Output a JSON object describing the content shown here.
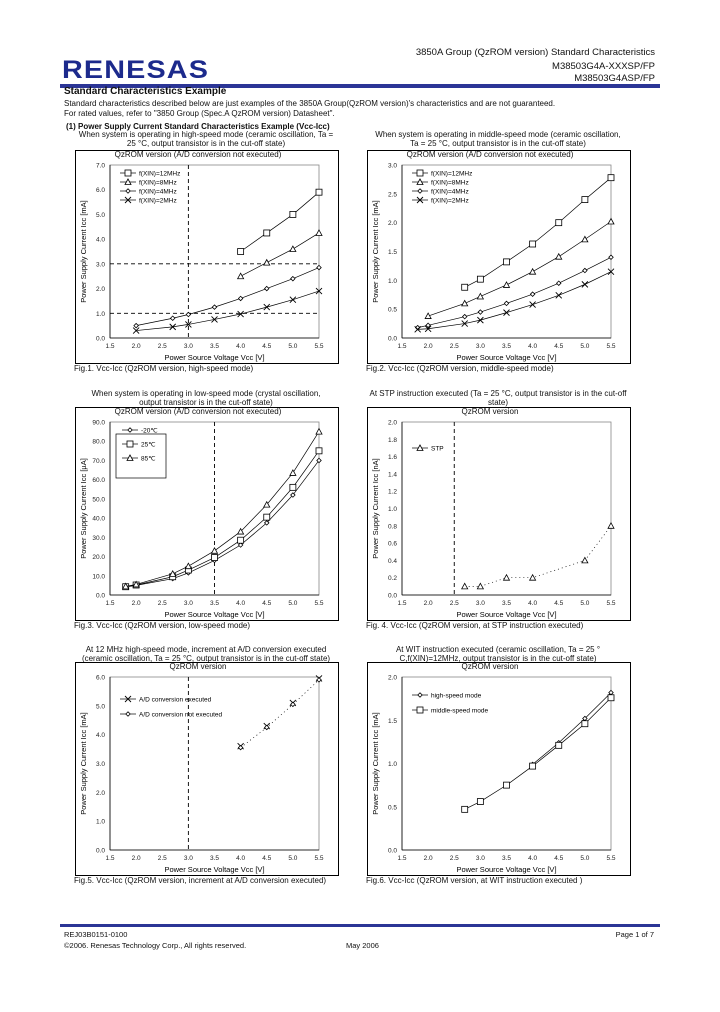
{
  "header": {
    "logo": "RENESAS",
    "title": "3850A Group (QzROM version) Standard Characteristics",
    "part1": "M38503G4A-XXXSP/FP",
    "part2": "M38503G4ASP/FP"
  },
  "section_title": "Standard Characteristics Example",
  "intro1": "Standard characteristics described below are just examples of the 3850A Group(QzROM version)'s characteristics and are not guaranteed.",
  "intro2": "For rated values, refer to \"3850 Group (Spec.A QzROM version) Datasheet\".",
  "subsection": "(1) Power Supply Current Standard Characteristics Example (Vcc-Icc)",
  "footer": {
    "doc": "REJ03B0151-0100",
    "copyright": "©2006. Renesas Technology Corp., All rights reserved.",
    "date": "May 2006",
    "page": "Page 1 of 7"
  },
  "chart_data": [
    {
      "type": "line",
      "title": [
        "When system is operating in high-speed mode (ceramic oscillation, Ta =",
        "25 °C, output transistor is in the cut-off state)"
      ],
      "subtitle": "QzROM version (A/D conversion not executed)",
      "caption": "Fig.1. Vcc-Icc (QzROM version, high-speed mode)",
      "xlabel": "Power Source Voltage Vcc [V]",
      "ylabel": "Power Supply Current Icc [mA]",
      "xlim": [
        1.5,
        5.5
      ],
      "ylim": [
        0,
        7
      ],
      "xstep": 0.5,
      "ystep": 1,
      "grid": false,
      "legend": "top-left",
      "ref_x": [
        3.0
      ],
      "ref_y": [
        1.0,
        3.0
      ],
      "series": [
        {
          "name": "f(XIN)=12MHz",
          "marker": "square",
          "x": [
            4,
            4.5,
            5,
            5.5
          ],
          "y": [
            3.5,
            4.25,
            5.0,
            5.9
          ]
        },
        {
          "name": "f(XIN)=8MHz",
          "marker": "triangle",
          "x": [
            4,
            4.5,
            5,
            5.5
          ],
          "y": [
            2.5,
            3.05,
            3.6,
            4.25
          ]
        },
        {
          "name": "f(XIN)=4MHz",
          "marker": "diamond",
          "x": [
            2,
            2.7,
            3,
            3.5,
            4,
            4.5,
            5,
            5.5
          ],
          "y": [
            0.5,
            0.8,
            0.95,
            1.25,
            1.6,
            2.0,
            2.4,
            2.85
          ]
        },
        {
          "name": "f(XIN)=2MHz",
          "marker": "x",
          "x": [
            2,
            2.7,
            3,
            3.5,
            4,
            4.5,
            5,
            5.5
          ],
          "y": [
            0.3,
            0.45,
            0.55,
            0.75,
            0.97,
            1.25,
            1.55,
            1.9
          ]
        }
      ]
    },
    {
      "type": "line",
      "title": [
        "When system is operating in middle-speed mode (ceramic oscillation,",
        "Ta = 25 °C, output transistor is in the cut-off state)"
      ],
      "subtitle": "QzROM version (A/D conversion not executed)",
      "caption": "Fig.2. Vcc-Icc (QzROM version, middle-speed mode)",
      "xlabel": "Power Source Voltage Vcc [V]",
      "ylabel": "Power Supply Current Icc [mA]",
      "xlim": [
        1.5,
        5.5
      ],
      "ylim": [
        0,
        3
      ],
      "xstep": 0.5,
      "ystep": 0.5,
      "grid": false,
      "legend": "top-left",
      "ref_x": [],
      "ref_y": [],
      "series": [
        {
          "name": "f(XIN)=12MHz",
          "marker": "square",
          "x": [
            2.7,
            3,
            3.5,
            4,
            4.5,
            5,
            5.5
          ],
          "y": [
            0.88,
            1.02,
            1.32,
            1.63,
            2.0,
            2.4,
            2.78
          ]
        },
        {
          "name": "f(XIN)=8MHz",
          "marker": "triangle",
          "x": [
            2,
            2.7,
            3,
            3.5,
            4,
            4.5,
            5,
            5.5
          ],
          "y": [
            0.38,
            0.6,
            0.72,
            0.92,
            1.15,
            1.41,
            1.71,
            2.02
          ]
        },
        {
          "name": "f(XIN)=4MHz",
          "marker": "diamond",
          "x": [
            1.8,
            2,
            2.7,
            3,
            3.5,
            4,
            4.5,
            5,
            5.5
          ],
          "y": [
            0.18,
            0.22,
            0.37,
            0.45,
            0.6,
            0.76,
            0.95,
            1.17,
            1.4
          ]
        },
        {
          "name": "f(XIN)=2MHz",
          "marker": "x",
          "x": [
            1.8,
            2,
            2.7,
            3,
            3.5,
            4,
            4.5,
            5,
            5.5
          ],
          "y": [
            0.15,
            0.16,
            0.25,
            0.31,
            0.44,
            0.58,
            0.74,
            0.93,
            1.15
          ]
        }
      ]
    },
    {
      "type": "line",
      "title": [
        "When system is operating in low-speed mode (crystal oscillation,",
        "output transistor is in the cut-off state)"
      ],
      "subtitle": "QzROM version (A/D conversion not executed)",
      "caption": "Fig.3. Vcc-Icc (QzROM version, low-speed mode)",
      "xlabel": "Power Source Voltage Vcc [V]",
      "ylabel": "Power Supply Current Icc [µA]",
      "xlim": [
        1.5,
        5.5
      ],
      "ylim": [
        0,
        90
      ],
      "xstep": 0.5,
      "ystep": 10,
      "grid": false,
      "legend": "top-left-boxed",
      "ref_x": [
        3.5
      ],
      "ref_y": [],
      "series": [
        {
          "name": "-20℃",
          "marker": "diamond",
          "x": [
            1.8,
            2,
            2.7,
            3,
            3.5,
            4,
            4.5,
            5,
            5.5
          ],
          "y": [
            4.2,
            5,
            8.5,
            11.5,
            18,
            26,
            37.5,
            52,
            70
          ]
        },
        {
          "name": "25℃",
          "marker": "square",
          "x": [
            1.8,
            2,
            2.7,
            3,
            3.5,
            4,
            4.5,
            5,
            5.5
          ],
          "y": [
            4.3,
            5.2,
            9.5,
            13,
            19.5,
            28.5,
            40.5,
            56,
            75
          ]
        },
        {
          "name": "85℃",
          "marker": "triangle",
          "x": [
            1.8,
            2,
            2.7,
            3,
            3.5,
            4,
            4.5,
            5,
            5.5
          ],
          "y": [
            4.5,
            5.5,
            11,
            15,
            23,
            33,
            47,
            63.5,
            85
          ]
        }
      ]
    },
    {
      "type": "line",
      "title": [
        "At STP instruction executed (Ta = 25 °C, output transistor is in the cut-off",
        "state)"
      ],
      "subtitle": "QzROM version",
      "caption": "Fig. 4. Vcc-Icc (QzROM version, at STP instruction executed)",
      "xlabel": "Power Source Voltage Vcc [V]",
      "ylabel": "Power Supply Current Icc [nA]",
      "xlim": [
        1.5,
        5.5
      ],
      "ylim": [
        0,
        2
      ],
      "xstep": 0.5,
      "ystep": 0.2,
      "grid": false,
      "legend": "top-left",
      "ref_x": [
        2.5
      ],
      "ref_y": [],
      "series": [
        {
          "name": "STP",
          "marker": "triangle",
          "line": "dotted",
          "x": [
            2.7,
            3,
            3.5,
            4,
            5,
            5.5
          ],
          "y": [
            0.1,
            0.1,
            0.2,
            0.2,
            0.4,
            0.8
          ]
        }
      ]
    },
    {
      "type": "line",
      "title": [
        "At 12 MHz high-speed mode, increment at A/D conversion executed",
        "(ceramic oscillation, Ta = 25 °C, output transistor is in the cut-off state)"
      ],
      "subtitle": "QzROM version",
      "caption": "Fig.5. Vcc-Icc (QzROM version, increment at A/D conversion executed)",
      "xlabel": "Power Source Voltage Vcc [V]",
      "ylabel": "Power Supply Current Icc [mA]",
      "xlim": [
        1.5,
        5.5
      ],
      "ylim": [
        0,
        6
      ],
      "xstep": 0.5,
      "ystep": 1,
      "grid": false,
      "legend": "top-left",
      "ref_x": [
        3.0
      ],
      "ref_y": [],
      "series": [
        {
          "name": "A/D conversion executed",
          "marker": "x",
          "line": "none",
          "x": [
            4,
            4.5,
            5,
            5.5
          ],
          "y": [
            3.6,
            4.3,
            5.1,
            5.95
          ]
        },
        {
          "name": "A/D conversion not executed",
          "marker": "diamond",
          "line": "dotted",
          "x": [
            4,
            4.5,
            5,
            5.5
          ],
          "y": [
            3.55,
            4.25,
            5.05,
            5.9
          ]
        }
      ]
    },
    {
      "type": "line",
      "title": [
        "At WIT instruction executed (ceramic oscillation, Ta = 25 °",
        "C,f(XIN)=12MHz, output transistor is in the cut-off state)"
      ],
      "subtitle": "QzROM version",
      "caption": "Fig.6. Vcc-Icc (QzROM version, at WIT instruction executed )",
      "xlabel": "Power Source Voltage Vcc [V]",
      "ylabel": "Power Supply Current Icc [mA]",
      "xlim": [
        1.5,
        5.5
      ],
      "ylim": [
        0,
        2
      ],
      "xstep": 0.5,
      "ystep": 0.5,
      "grid": false,
      "legend": "top-left",
      "ref_x": [],
      "ref_y": [],
      "series": [
        {
          "name": "high-speed mode",
          "marker": "diamond",
          "x": [
            4,
            4.5,
            5,
            5.5
          ],
          "y": [
            0.99,
            1.24,
            1.52,
            1.82
          ]
        },
        {
          "name": "middle-speed mode",
          "marker": "square",
          "x": [
            2.7,
            3,
            3.5,
            4,
            4.5,
            5,
            5.5
          ],
          "y": [
            0.47,
            0.56,
            0.75,
            0.97,
            1.21,
            1.46,
            1.76
          ]
        }
      ]
    }
  ]
}
